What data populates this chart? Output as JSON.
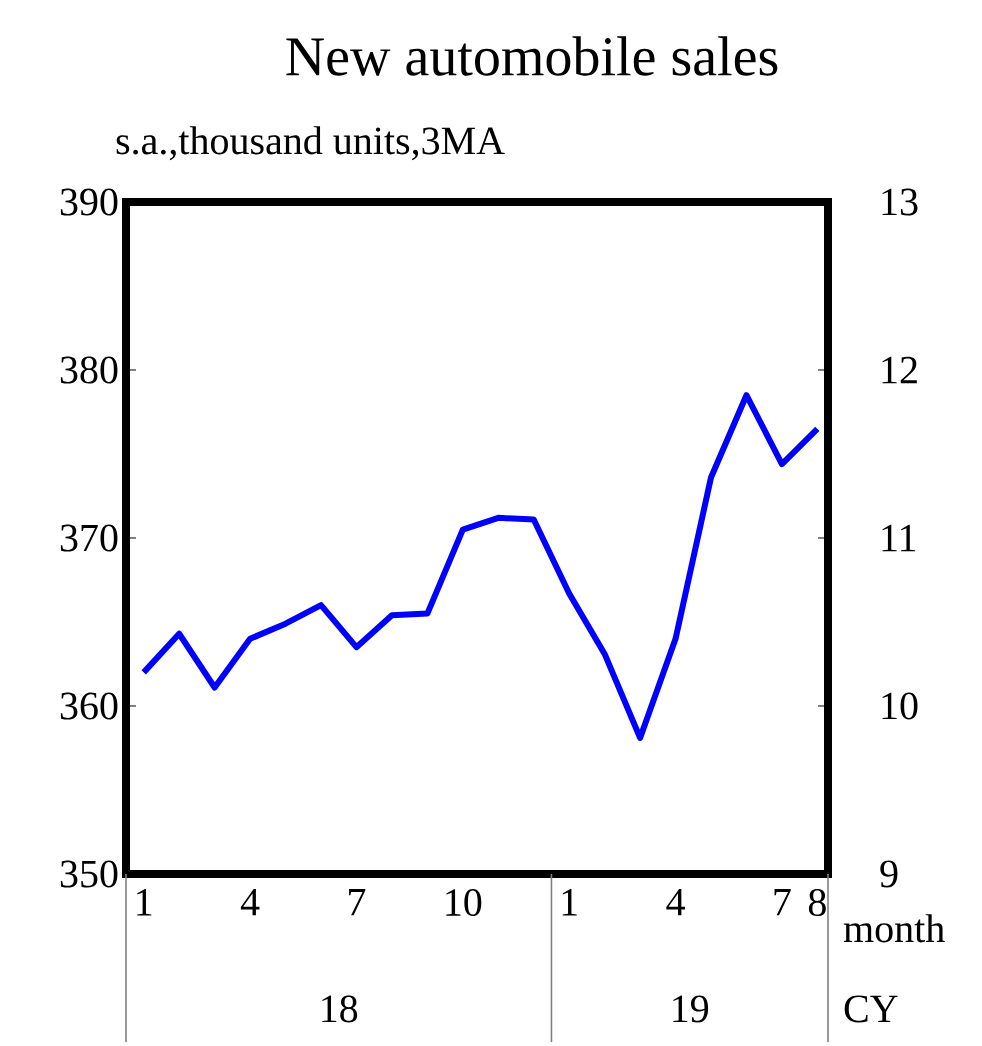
{
  "chart_data": {
    "type": "line",
    "title": "New automobile sales",
    "subtitle": "s.a.,thousand units,3MA",
    "xlabel": "month",
    "categories": [
      "1",
      null,
      null,
      "4",
      null,
      null,
      "7",
      null,
      null,
      "10",
      null,
      null,
      "1",
      null,
      null,
      "4",
      null,
      null,
      "7",
      "8"
    ],
    "series": [
      {
        "color": "#0000ff",
        "values": [
          362.0,
          364.3,
          361.1,
          364.0,
          364.9,
          366.0,
          363.5,
          365.4,
          365.5,
          370.5,
          371.2,
          371.1,
          366.7,
          363.1,
          358.1,
          364.0,
          373.6,
          378.5,
          374.4,
          376.5
        ]
      }
    ],
    "ylim": [
      350,
      390
    ],
    "yticks": [
      350,
      360,
      370,
      380,
      390
    ],
    "y2lim": [
      9,
      13
    ],
    "y2ticks": [
      9,
      10,
      11,
      12,
      13
    ],
    "annotations": [
      "18",
      "19",
      "CY"
    ],
    "grid": false,
    "marker": "none",
    "line_style": "solid"
  }
}
